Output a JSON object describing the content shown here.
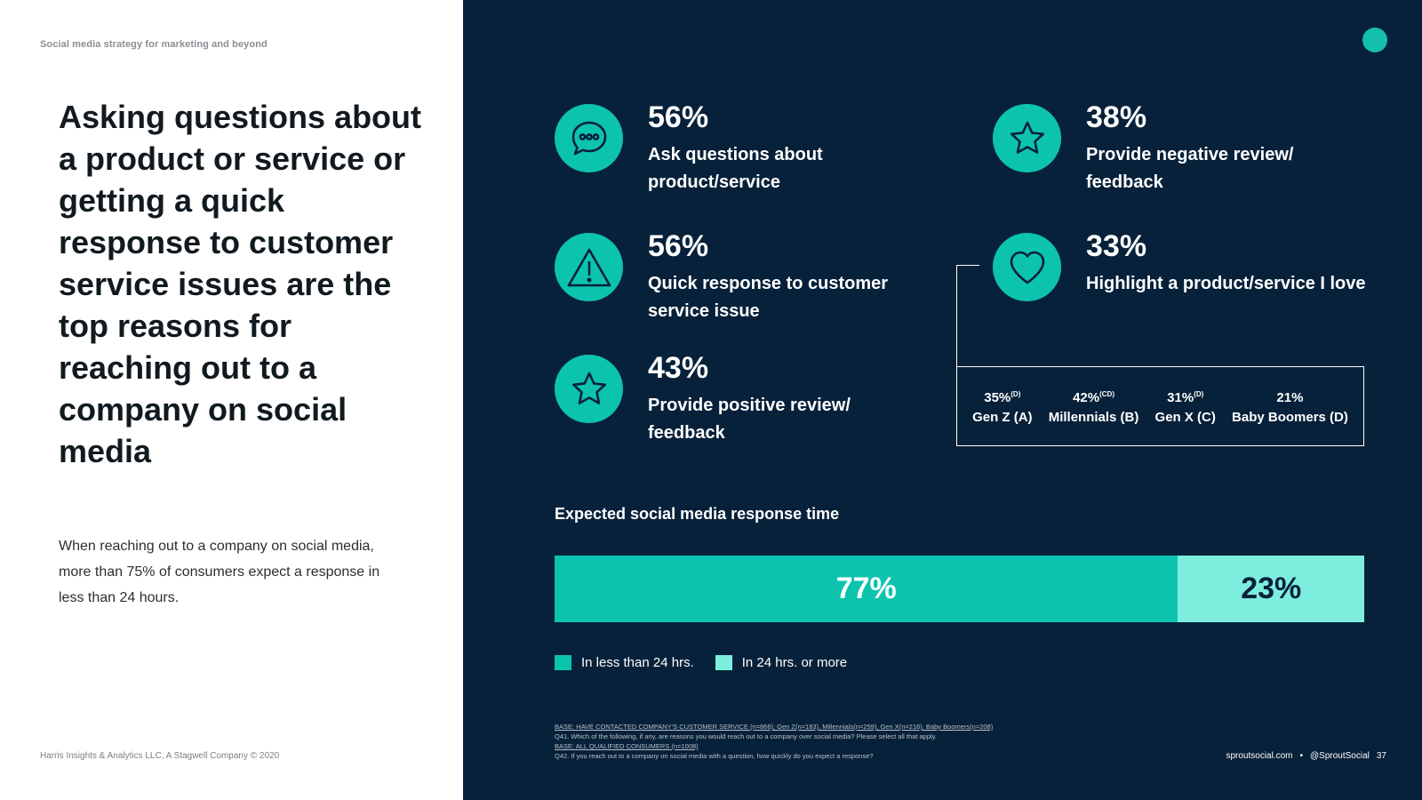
{
  "header_label": "Social media strategy for marketing and beyond",
  "headline": "Asking questions about a product or service or getting a quick response to customer service issues are the top reasons for reaching out to a company on social media",
  "subtext": "When reaching out to a company on social media, more than 75% of consumers expect a response in less than 24 hours.",
  "footer_left": "Harris Insights & Analytics LLC, A Stagwell Company © 2020",
  "stats": [
    {
      "pct": "56%",
      "label": "Ask questions about product/service",
      "icon": "chat-bubble-icon"
    },
    {
      "pct": "56%",
      "label": "Quick response to customer service issue",
      "icon": "warning-icon"
    },
    {
      "pct": "43%",
      "label": "Provide positive review/ feedback",
      "icon": "star-icon"
    },
    {
      "pct": "38%",
      "label": "Provide negative review/ feedback",
      "icon": "star-icon"
    },
    {
      "pct": "33%",
      "label": "Highlight a product/service I love",
      "icon": "heart-icon"
    }
  ],
  "generations": [
    {
      "value": "35%",
      "sup": "(D)",
      "name": "Gen Z (A)"
    },
    {
      "value": "42%",
      "sup": "(CD)",
      "name": "Millennials (B)"
    },
    {
      "value": "31%",
      "sup": "(D)",
      "name": "Gen X (C)"
    },
    {
      "value": "21%",
      "sup": "",
      "name": "Baby Boomers (D)"
    }
  ],
  "bar_title": "Expected social media response time",
  "chart_data": {
    "type": "bar",
    "title": "Expected social media response time",
    "series": [
      {
        "name": "In less than 24 hrs.",
        "value": 77,
        "label": "77%",
        "color": "#0cc3ae"
      },
      {
        "name": "In 24 hrs. or more",
        "value": 23,
        "label": "23%",
        "color": "#7deede"
      }
    ]
  },
  "notes": {
    "line1": "BASE: HAVE CONTACTED COMPANY'S CUSTOMER SERVICE (n=866); Gen Z(n=183), Millennials(n=259), Gen X(n=216), Baby Boomers(n=208)",
    "line2": "Q41. Which of the following, if any, are reasons you would reach out to a company over social media? Please select all that apply.",
    "line3": "BASE: ALL QUALIFIED CONSUMERS (n=1008)",
    "line4": "Q42. If you reach out to a company on social media with a question, how quickly do you expect a response?"
  },
  "footer_right": {
    "site": "sproutsocial.com",
    "sep": "•",
    "handle": "@SproutSocial",
    "page": "37"
  },
  "colors": {
    "navy": "#08213a",
    "teal": "#0cc3ae",
    "light_teal": "#7deede"
  }
}
